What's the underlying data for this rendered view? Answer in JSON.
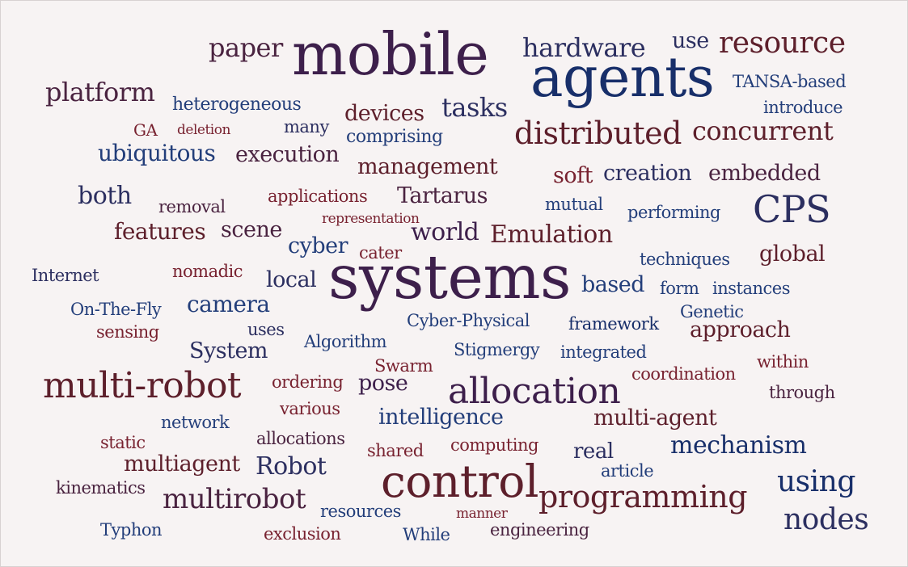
{
  "palette": {
    "navy": "#233e7a",
    "deep_navy": "#182f6a",
    "purple": "#3d1f4b",
    "plum": "#4a2340",
    "maroon": "#5d1f2b",
    "red": "#782230",
    "indigo": "#2c2f60"
  },
  "words": [
    {
      "text": "mobile",
      "weight": 72,
      "color": "#3d1f4b"
    },
    {
      "text": "agents",
      "weight": 68,
      "color": "#182f6a"
    },
    {
      "text": "systems",
      "weight": 75,
      "color": "#3d1f4b"
    },
    {
      "text": "control",
      "weight": 55,
      "color": "#5d1f2b"
    },
    {
      "text": "allocation",
      "weight": 44,
      "color": "#3d1f4b"
    },
    {
      "text": "multi-robot",
      "weight": 44,
      "color": "#5d1f2b"
    },
    {
      "text": "CPS",
      "weight": 46,
      "color": "#2c2f60"
    },
    {
      "text": "distributed",
      "weight": 38,
      "color": "#5d1f2b"
    },
    {
      "text": "programming",
      "weight": 38,
      "color": "#5d1f2b"
    },
    {
      "text": "resource",
      "weight": 36,
      "color": "#5d1f2b"
    },
    {
      "text": "nodes",
      "weight": 36,
      "color": "#2c2f60"
    },
    {
      "text": "using",
      "weight": 36,
      "color": "#182f6a"
    },
    {
      "text": "multirobot",
      "weight": 34,
      "color": "#4a2340"
    },
    {
      "text": "hardware",
      "weight": 32,
      "color": "#2c2f60"
    },
    {
      "text": "platform",
      "weight": 32,
      "color": "#4a2340"
    },
    {
      "text": "tasks",
      "weight": 32,
      "color": "#2c2f60"
    },
    {
      "text": "concurrent",
      "weight": 32,
      "color": "#5d1f2b"
    },
    {
      "text": "paper",
      "weight": 32,
      "color": "#4a2340"
    },
    {
      "text": "mechanism",
      "weight": 30,
      "color": "#182f6a"
    },
    {
      "text": "Robot",
      "weight": 30,
      "color": "#2c2f60"
    },
    {
      "text": "both",
      "weight": 30,
      "color": "#2c2f60"
    },
    {
      "text": "Emulation",
      "weight": 30,
      "color": "#5d1f2b"
    },
    {
      "text": "world",
      "weight": 30,
      "color": "#3d1f4b"
    },
    {
      "text": "camera",
      "weight": 28,
      "color": "#233e7a"
    },
    {
      "text": "ubiquitous",
      "weight": 28,
      "color": "#233e7a"
    },
    {
      "text": "features",
      "weight": 28,
      "color": "#5d1f2b"
    },
    {
      "text": "execution",
      "weight": 27,
      "color": "#4a2340"
    },
    {
      "text": "multi-agent",
      "weight": 27,
      "color": "#5d1f2b"
    },
    {
      "text": "intelligence",
      "weight": 27,
      "color": "#233e7a"
    },
    {
      "text": "management",
      "weight": 27,
      "color": "#5d1f2b"
    },
    {
      "text": "embedded",
      "weight": 27,
      "color": "#4a2340"
    },
    {
      "text": "creation",
      "weight": 27,
      "color": "#2c2f60"
    },
    {
      "text": "approach",
      "weight": 27,
      "color": "#5d1f2b"
    },
    {
      "text": "multiagent",
      "weight": 27,
      "color": "#5d1f2b"
    },
    {
      "text": "pose",
      "weight": 27,
      "color": "#3d1f4b"
    },
    {
      "text": "scene",
      "weight": 27,
      "color": "#4a2340"
    },
    {
      "text": "cyber",
      "weight": 27,
      "color": "#233e7a"
    },
    {
      "text": "local",
      "weight": 27,
      "color": "#2c2f60"
    },
    {
      "text": "based",
      "weight": 27,
      "color": "#233e7a"
    },
    {
      "text": "global",
      "weight": 27,
      "color": "#5d1f2b"
    },
    {
      "text": "Tartarus",
      "weight": 27,
      "color": "#4a2340"
    },
    {
      "text": "soft",
      "weight": 27,
      "color": "#782230"
    },
    {
      "text": "System",
      "weight": 27,
      "color": "#2c2f60"
    },
    {
      "text": "devices",
      "weight": 27,
      "color": "#5d1f2b"
    },
    {
      "text": "use",
      "weight": 27,
      "color": "#2c2f60"
    },
    {
      "text": "real",
      "weight": 26,
      "color": "#2c2f60"
    },
    {
      "text": "heterogeneous",
      "weight": 22,
      "color": "#233e7a"
    },
    {
      "text": "comprising",
      "weight": 22,
      "color": "#233e7a"
    },
    {
      "text": "TANSA-based",
      "weight": 21,
      "color": "#233e7a"
    },
    {
      "text": "introduce",
      "weight": 21,
      "color": "#233e7a"
    },
    {
      "text": "many",
      "weight": 21,
      "color": "#2c2f60"
    },
    {
      "text": "GA",
      "weight": 20,
      "color": "#782230"
    },
    {
      "text": "deletion",
      "weight": 17,
      "color": "#782230"
    },
    {
      "text": "removal",
      "weight": 21,
      "color": "#4a2340"
    },
    {
      "text": "applications",
      "weight": 21,
      "color": "#782230"
    },
    {
      "text": "mutual",
      "weight": 21,
      "color": "#233e7a"
    },
    {
      "text": "performing",
      "weight": 21,
      "color": "#233e7a"
    },
    {
      "text": "representation",
      "weight": 17,
      "color": "#782230"
    },
    {
      "text": "cater",
      "weight": 21,
      "color": "#782230"
    },
    {
      "text": "techniques",
      "weight": 21,
      "color": "#233e7a"
    },
    {
      "text": "Internet",
      "weight": 21,
      "color": "#2c2f60"
    },
    {
      "text": "nomadic",
      "weight": 21,
      "color": "#782230"
    },
    {
      "text": "form",
      "weight": 21,
      "color": "#233e7a"
    },
    {
      "text": "instances",
      "weight": 21,
      "color": "#233e7a"
    },
    {
      "text": "On-The-Fly",
      "weight": 21,
      "color": "#233e7a"
    },
    {
      "text": "sensing",
      "weight": 21,
      "color": "#782230"
    },
    {
      "text": "uses",
      "weight": 21,
      "color": "#2c2f60"
    },
    {
      "text": "Cyber-Physical",
      "weight": 21,
      "color": "#233e7a"
    },
    {
      "text": "framework",
      "weight": 21,
      "color": "#182f6a"
    },
    {
      "text": "Genetic",
      "weight": 21,
      "color": "#233e7a"
    },
    {
      "text": "Algorithm",
      "weight": 21,
      "color": "#233e7a"
    },
    {
      "text": "Stigmergy",
      "weight": 21,
      "color": "#233e7a"
    },
    {
      "text": "integrated",
      "weight": 21,
      "color": "#233e7a"
    },
    {
      "text": "within",
      "weight": 21,
      "color": "#782230"
    },
    {
      "text": "Swarm",
      "weight": 21,
      "color": "#782230"
    },
    {
      "text": "ordering",
      "weight": 21,
      "color": "#782230"
    },
    {
      "text": "coordination",
      "weight": 21,
      "color": "#782230"
    },
    {
      "text": "through",
      "weight": 21,
      "color": "#4a2340"
    },
    {
      "text": "various",
      "weight": 21,
      "color": "#782230"
    },
    {
      "text": "network",
      "weight": 21,
      "color": "#233e7a"
    },
    {
      "text": "static",
      "weight": 21,
      "color": "#782230"
    },
    {
      "text": "allocations",
      "weight": 21,
      "color": "#4a2340"
    },
    {
      "text": "shared",
      "weight": 21,
      "color": "#782230"
    },
    {
      "text": "computing",
      "weight": 21,
      "color": "#782230"
    },
    {
      "text": "article",
      "weight": 21,
      "color": "#233e7a"
    },
    {
      "text": "kinematics",
      "weight": 21,
      "color": "#4a2340"
    },
    {
      "text": "resources",
      "weight": 21,
      "color": "#233e7a"
    },
    {
      "text": "manner",
      "weight": 17,
      "color": "#782230"
    },
    {
      "text": "Typhon",
      "weight": 21,
      "color": "#233e7a"
    },
    {
      "text": "exclusion",
      "weight": 21,
      "color": "#782230"
    },
    {
      "text": "While",
      "weight": 21,
      "color": "#233e7a"
    },
    {
      "text": "engineering",
      "weight": 21,
      "color": "#4a2340"
    }
  ]
}
